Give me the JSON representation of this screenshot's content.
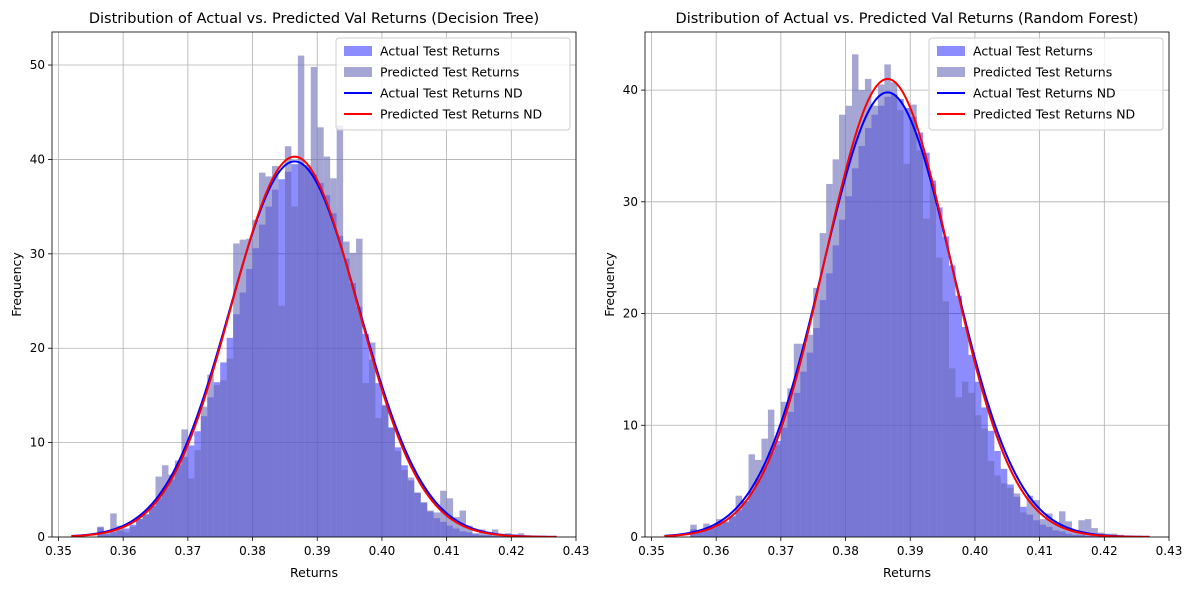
{
  "chart_data": [
    {
      "type": "histogram",
      "title": "Distribution of Actual vs. Predicted Val Returns (Decision Tree)",
      "xlabel": "Returns",
      "ylabel": "Frequency",
      "xlim": [
        0.349,
        0.43
      ],
      "ylim": [
        0,
        53.5
      ],
      "xticks": [
        "0.35",
        "0.36",
        "0.37",
        "0.38",
        "0.39",
        "0.40",
        "0.41",
        "0.42",
        "0.43"
      ],
      "yticks": [
        "0",
        "10",
        "20",
        "30",
        "40",
        "50"
      ],
      "grid": true,
      "legend_position": "top-right",
      "series": [
        {
          "name": "Actual Test Returns",
          "kind": "bar",
          "color": "#0000ff",
          "alpha": 0.45,
          "bin_start": 0.352,
          "bin_width": 0.001,
          "values": [
            0,
            0,
            0,
            0,
            1.0,
            0.3,
            0.5,
            0.7,
            0.9,
            1.3,
            1.9,
            2.4,
            3.3,
            4.1,
            5.2,
            6.1,
            7.6,
            8.5,
            9.7,
            11.2,
            12.8,
            14.8,
            16.4,
            18.5,
            21.1,
            23.6,
            25.9,
            28.4,
            30.6,
            33.1,
            35.0,
            36.8,
            37.9,
            38.7,
            39.5,
            39.5,
            39.1,
            38.4,
            37.5,
            36.2,
            34.3,
            31.9,
            29.5,
            26.9,
            24.4,
            21.5,
            18.8,
            16.3,
            13.9,
            11.6,
            9.5,
            7.6,
            6.0,
            4.7,
            3.6,
            2.7,
            2.0,
            1.6,
            1.2,
            0.9,
            0.6,
            0.5,
            0.3,
            0.2,
            0.2,
            0.1,
            0.1,
            0.1,
            0.1,
            0.1,
            0,
            0,
            0,
            0,
            0
          ]
        },
        {
          "name": "Predicted Test Returns",
          "kind": "bar",
          "color": "#6b6bb8",
          "alpha": 0.6,
          "bin_start": 0.352,
          "bin_width": 0.001,
          "values": [
            0,
            0,
            0,
            0,
            1.1,
            0.6,
            2.5,
            1.2,
            0.5,
            1.1,
            1.9,
            2.4,
            3.3,
            6.4,
            7.6,
            6.6,
            8.1,
            11.4,
            6.2,
            9.2,
            13.8,
            17.2,
            16.1,
            16.6,
            18.9,
            31.1,
            31.5,
            31.6,
            33.6,
            38.6,
            38.2,
            39.3,
            24.5,
            41.4,
            35.0,
            51.0,
            39.4,
            49.8,
            43.4,
            40.3,
            38.0,
            43.6,
            31.3,
            30.1,
            31.6,
            16.3,
            20.6,
            12.6,
            14.0,
            11.6,
            9.1,
            7.1,
            6.3,
            4.7,
            3.7,
            2.8,
            2.6,
            4.9,
            4.1,
            2.1,
            2.8,
            1.2,
            0.4,
            0.8,
            0.3,
            0.8,
            0.3,
            0.4,
            0.3,
            0.4,
            0.2,
            0,
            0,
            0,
            0
          ]
        },
        {
          "name": "Actual Test Returns ND",
          "kind": "line",
          "color": "#0000ff",
          "mean": 0.3865,
          "std": 0.01,
          "amplitude": 39.8
        },
        {
          "name": "Predicted Test Returns ND",
          "kind": "line",
          "color": "#ff0000",
          "mean": 0.3865,
          "std": 0.0098,
          "amplitude": 40.3
        }
      ],
      "curve_x_range": [
        0.352,
        0.427
      ]
    },
    {
      "type": "histogram",
      "title": "Distribution of Actual vs. Predicted Val Returns (Random Forest)",
      "xlabel": "Returns",
      "ylabel": "Frequency",
      "xlim": [
        0.349,
        0.43
      ],
      "ylim": [
        0,
        45.2
      ],
      "xticks": [
        "0.35",
        "0.36",
        "0.37",
        "0.38",
        "0.39",
        "0.40",
        "0.41",
        "0.42",
        "0.43"
      ],
      "yticks": [
        "0",
        "10",
        "20",
        "30",
        "40"
      ],
      "grid": true,
      "legend_position": "top-right",
      "series": [
        {
          "name": "Actual Test Returns",
          "kind": "bar",
          "color": "#0000ff",
          "alpha": 0.45,
          "bin_start": 0.352,
          "bin_width": 0.001,
          "values": [
            0,
            0,
            0,
            0,
            0.7,
            0.5,
            0.7,
            0.8,
            1.1,
            1.3,
            1.8,
            2.4,
            3.2,
            4.1,
            5.2,
            6.3,
            7.6,
            8.6,
            9.8,
            11.2,
            12.9,
            14.8,
            16.5,
            18.7,
            21.2,
            23.6,
            26.1,
            28.4,
            30.5,
            33.0,
            35.0,
            36.6,
            37.8,
            38.6,
            39.4,
            39.6,
            39.2,
            38.4,
            37.6,
            36.2,
            34.4,
            31.9,
            29.5,
            26.9,
            24.3,
            21.6,
            18.8,
            16.3,
            13.9,
            11.6,
            9.5,
            7.7,
            6.1,
            4.7,
            3.6,
            2.7,
            2.0,
            1.5,
            1.1,
            0.9,
            0.6,
            0.5,
            0.3,
            0.2,
            0.2,
            0.1,
            0.1,
            0.1,
            0.1,
            0.1,
            0,
            0,
            0,
            0,
            0
          ]
        },
        {
          "name": "Predicted Test Returns",
          "kind": "bar",
          "color": "#6b6bb8",
          "alpha": 0.6,
          "bin_start": 0.352,
          "bin_width": 0.001,
          "values": [
            0,
            0,
            0,
            0,
            1.1,
            0.6,
            1.2,
            0.9,
            1.6,
            1.4,
            1.9,
            3.7,
            3.2,
            7.4,
            6.9,
            8.8,
            11.4,
            8.2,
            12.1,
            13.3,
            17.3,
            17.3,
            18.1,
            22.3,
            27.2,
            31.6,
            33.8,
            37.8,
            38.6,
            43.2,
            40.0,
            41.0,
            38.6,
            40.5,
            42.3,
            40.7,
            38.2,
            33.4,
            38.7,
            34.6,
            28.5,
            31.6,
            25.0,
            21.1,
            15.1,
            12.5,
            13.9,
            12.9,
            10.9,
            9.7,
            6.8,
            5.5,
            4.8,
            4.4,
            3.9,
            2.2,
            3.7,
            3.3,
            1.6,
            2.1,
            1.3,
            2.3,
            1.4,
            0.6,
            1.5,
            1.6,
            0.8,
            0.4,
            0.3,
            0.3,
            0.2,
            0,
            0,
            0,
            0
          ]
        },
        {
          "name": "Actual Test Returns ND",
          "kind": "line",
          "color": "#0000ff",
          "mean": 0.3865,
          "std": 0.01,
          "amplitude": 39.8
        },
        {
          "name": "Predicted Test Returns ND",
          "kind": "line",
          "color": "#ff0000",
          "mean": 0.3865,
          "std": 0.0097,
          "amplitude": 41.0
        }
      ],
      "curve_x_range": [
        0.352,
        0.427
      ]
    }
  ]
}
